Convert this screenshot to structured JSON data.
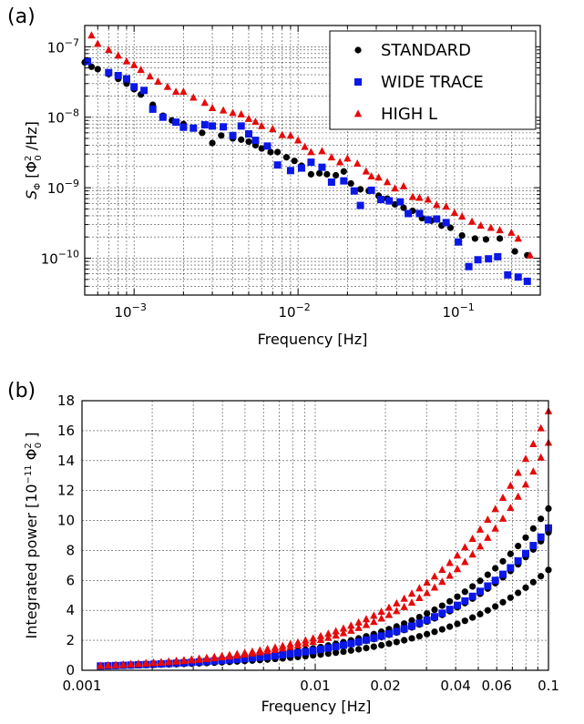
{
  "chart_data": [
    {
      "panel_label": "(a)",
      "type": "scatter",
      "xscale": "log",
      "yscale": "log",
      "xlim": [
        0.0005,
        0.3
      ],
      "ylim": [
        3e-11,
        2e-07
      ],
      "xlabel": "Frequency [Hz]",
      "ylabel": "S_Φ [Φ0² /Hz]",
      "x_ticks": [
        {
          "value": 0.001,
          "base": "10",
          "exp": "−3"
        },
        {
          "value": 0.01,
          "base": "10",
          "exp": "−2"
        },
        {
          "value": 0.1,
          "base": "10",
          "exp": "−1"
        }
      ],
      "y_ticks": [
        {
          "value": 1e-07,
          "base": "10",
          "exp": "−7"
        },
        {
          "value": 1e-08,
          "base": "10",
          "exp": "−8"
        },
        {
          "value": 1e-09,
          "base": "10",
          "exp": "−9"
        },
        {
          "value": 1e-10,
          "base": "10",
          "exp": "−10"
        }
      ],
      "grid": true,
      "legend_position": "top-right",
      "series": [
        {
          "name": "STANDARD",
          "color": "#000000",
          "marker": "circle",
          "points": [
            [
              0.0005,
              6e-08
            ],
            [
              0.00055,
              5.2e-08
            ],
            [
              0.0006,
              4.8e-08
            ],
            [
              0.0007,
              4.1e-08
            ],
            [
              0.0008,
              3.5e-08
            ],
            [
              0.0009,
              3e-08
            ],
            [
              0.001,
              2.5e-08
            ],
            [
              0.0011,
              2.1e-08
            ],
            [
              0.0013,
              1.5e-08
            ],
            [
              0.0015,
              1.05e-08
            ],
            [
              0.0017,
              9e-09
            ],
            [
              0.002,
              8e-09
            ],
            [
              0.0023,
              7e-09
            ],
            [
              0.0026,
              6e-09
            ],
            [
              0.003,
              4.3e-09
            ],
            [
              0.0034,
              5.5e-09
            ],
            [
              0.004,
              5e-09
            ],
            [
              0.0045,
              4.8e-09
            ],
            [
              0.005,
              4.5e-09
            ],
            [
              0.0055,
              4e-09
            ],
            [
              0.006,
              3.6e-09
            ],
            [
              0.0068,
              3.2e-09
            ],
            [
              0.0075,
              3.2e-09
            ],
            [
              0.0085,
              2.7e-09
            ],
            [
              0.0095,
              2.4e-09
            ],
            [
              0.0105,
              2.05e-09
            ],
            [
              0.012,
              1.55e-09
            ],
            [
              0.0135,
              1.6e-09
            ],
            [
              0.015,
              1.55e-09
            ],
            [
              0.017,
              1.5e-09
            ],
            [
              0.019,
              1.7e-09
            ],
            [
              0.021,
              1.15e-09
            ],
            [
              0.024,
              9.5e-10
            ],
            [
              0.027,
              9e-10
            ],
            [
              0.031,
              7.7e-10
            ],
            [
              0.035,
              7e-10
            ],
            [
              0.039,
              5.8e-10
            ],
            [
              0.044,
              5.2e-10
            ],
            [
              0.05,
              4.7e-10
            ],
            [
              0.057,
              3.7e-10
            ],
            [
              0.065,
              3.4e-10
            ],
            [
              0.075,
              2.9e-10
            ],
            [
              0.085,
              2.7e-10
            ],
            [
              0.1,
              2.1e-10
            ],
            [
              0.12,
              1.9e-10
            ],
            [
              0.14,
              1.85e-10
            ],
            [
              0.17,
              1.9e-10
            ],
            [
              0.21,
              1.25e-10
            ],
            [
              0.25,
              1.1e-10
            ]
          ]
        },
        {
          "name": "WIDE TRACE",
          "color": "#0a17e6",
          "marker": "square",
          "points": [
            [
              0.00052,
              6.2e-08
            ],
            [
              0.0007,
              4.3e-08
            ],
            [
              0.0008,
              3.9e-08
            ],
            [
              0.0009,
              3.5e-08
            ],
            [
              0.001,
              2.7e-08
            ],
            [
              0.00115,
              2.4e-08
            ],
            [
              0.0013,
              1.3e-08
            ],
            [
              0.0015,
              1e-08
            ],
            [
              0.0018,
              8.5e-09
            ],
            [
              0.002,
              7.2e-09
            ],
            [
              0.0023,
              7e-09
            ],
            [
              0.0027,
              7.8e-09
            ],
            [
              0.003,
              7.5e-09
            ],
            [
              0.0035,
              7.3e-09
            ],
            [
              0.004,
              5.5e-09
            ],
            [
              0.0045,
              7.5e-09
            ],
            [
              0.005,
              5.8e-09
            ],
            [
              0.0055,
              4.7e-09
            ],
            [
              0.0065,
              3.9e-09
            ],
            [
              0.0075,
              2.1e-09
            ],
            [
              0.009,
              1.75e-09
            ],
            [
              0.0105,
              1.9e-09
            ],
            [
              0.012,
              2.3e-09
            ],
            [
              0.014,
              1.95e-09
            ],
            [
              0.016,
              1.2e-09
            ],
            [
              0.019,
              1.25e-09
            ],
            [
              0.022,
              9e-10
            ],
            [
              0.024,
              5.6e-10
            ],
            [
              0.028,
              9.2e-10
            ],
            [
              0.032,
              6.8e-10
            ],
            [
              0.036,
              6.5e-10
            ],
            [
              0.042,
              6.3e-10
            ],
            [
              0.047,
              4.3e-10
            ],
            [
              0.055,
              4.3e-10
            ],
            [
              0.062,
              3.5e-10
            ],
            [
              0.07,
              3.6e-10
            ],
            [
              0.08,
              3.2e-10
            ],
            [
              0.095,
              1.7e-10
            ],
            [
              0.11,
              7.6e-11
            ],
            [
              0.125,
              9.5e-11
            ],
            [
              0.145,
              9.8e-11
            ],
            [
              0.165,
              1.05e-10
            ],
            [
              0.19,
              5.8e-11
            ],
            [
              0.22,
              5.4e-11
            ],
            [
              0.25,
              4.7e-11
            ]
          ]
        },
        {
          "name": "HIGH L",
          "color": "#e60a0a",
          "marker": "triangle",
          "points": [
            [
              0.00055,
              1.45e-07
            ],
            [
              0.0006,
              1.1e-07
            ],
            [
              0.0007,
              9e-08
            ],
            [
              0.0008,
              7.5e-08
            ],
            [
              0.0009,
              6.2e-08
            ],
            [
              0.001,
              5.5e-08
            ],
            [
              0.0011,
              4.7e-08
            ],
            [
              0.00125,
              3.8e-08
            ],
            [
              0.0014,
              3.2e-08
            ],
            [
              0.0016,
              2.7e-08
            ],
            [
              0.0018,
              2.3e-08
            ],
            [
              0.002,
              2.3e-08
            ],
            [
              0.0023,
              1.9e-08
            ],
            [
              0.0027,
              1.6e-08
            ],
            [
              0.003,
              1.35e-08
            ],
            [
              0.0035,
              1.25e-08
            ],
            [
              0.004,
              1.15e-08
            ],
            [
              0.0045,
              1.1e-08
            ],
            [
              0.005,
              9.5e-09
            ],
            [
              0.0055,
              8.6e-09
            ],
            [
              0.006,
              7.5e-09
            ],
            [
              0.007,
              6.8e-09
            ],
            [
              0.008,
              5.6e-09
            ],
            [
              0.009,
              5.5e-09
            ],
            [
              0.01,
              4.7e-09
            ],
            [
              0.011,
              3.8e-09
            ],
            [
              0.012,
              3.2e-09
            ],
            [
              0.014,
              3.3e-09
            ],
            [
              0.016,
              2.7e-09
            ],
            [
              0.018,
              2.3e-09
            ],
            [
              0.02,
              2.6e-09
            ],
            [
              0.023,
              2.2e-09
            ],
            [
              0.026,
              1.7e-09
            ],
            [
              0.028,
              1.45e-09
            ],
            [
              0.031,
              1.4e-09
            ],
            [
              0.035,
              1.2e-09
            ],
            [
              0.039,
              9.8e-10
            ],
            [
              0.044,
              1.05e-09
            ],
            [
              0.05,
              7.4e-10
            ],
            [
              0.055,
              7.2e-10
            ],
            [
              0.062,
              6.8e-10
            ],
            [
              0.07,
              5.7e-10
            ],
            [
              0.08,
              5.4e-10
            ],
            [
              0.09,
              4.4e-10
            ],
            [
              0.1,
              3.9e-10
            ],
            [
              0.115,
              3.3e-10
            ],
            [
              0.13,
              2.9e-10
            ],
            [
              0.15,
              2.7e-10
            ],
            [
              0.17,
              2.5e-10
            ],
            [
              0.2,
              2.3e-10
            ],
            [
              0.22,
              1.9e-10
            ],
            [
              0.26,
              1.1e-10
            ]
          ]
        }
      ]
    },
    {
      "panel_label": "(b)",
      "type": "scatter",
      "xscale": "log",
      "yscale": "linear",
      "xlim": [
        0.001,
        0.1
      ],
      "ylim": [
        0,
        18
      ],
      "xlabel": "Frequency [Hz]",
      "ylabel": "Integrated power [10⁻¹¹ Φ0² ]",
      "x_ticks": [
        {
          "value": 0.001,
          "label": "0.001"
        },
        {
          "value": 0.01,
          "label": "0.01"
        },
        {
          "value": 0.02,
          "label": "0.02"
        },
        {
          "value": 0.04,
          "label": "0.04"
        },
        {
          "value": 0.06,
          "label": "0.06"
        },
        {
          "value": 0.1,
          "label": "0.1"
        }
      ],
      "y_ticks": [
        0,
        2,
        4,
        6,
        8,
        10,
        12,
        14,
        16,
        18
      ],
      "grid": true,
      "series": [
        {
          "name": "STANDARD",
          "color": "#000000",
          "marker": "circle",
          "curves": [
            {
              "end_value": 10.8,
              "exponent": 1.12
            },
            {
              "end_value": 9.2,
              "exponent": 1.12
            },
            {
              "end_value": 6.7,
              "exponent": 1.12
            }
          ]
        },
        {
          "name": "WIDE TRACE",
          "color": "#0a17e6",
          "marker": "square",
          "curves": [
            {
              "end_value": 9.5,
              "exponent": 1.12
            }
          ]
        },
        {
          "name": "HIGH L",
          "color": "#e60a0a",
          "marker": "triangle",
          "curves": [
            {
              "end_value": 17.3,
              "exponent": 1.1
            },
            {
              "end_value": 15.2,
              "exponent": 1.1
            }
          ]
        }
      ]
    }
  ]
}
